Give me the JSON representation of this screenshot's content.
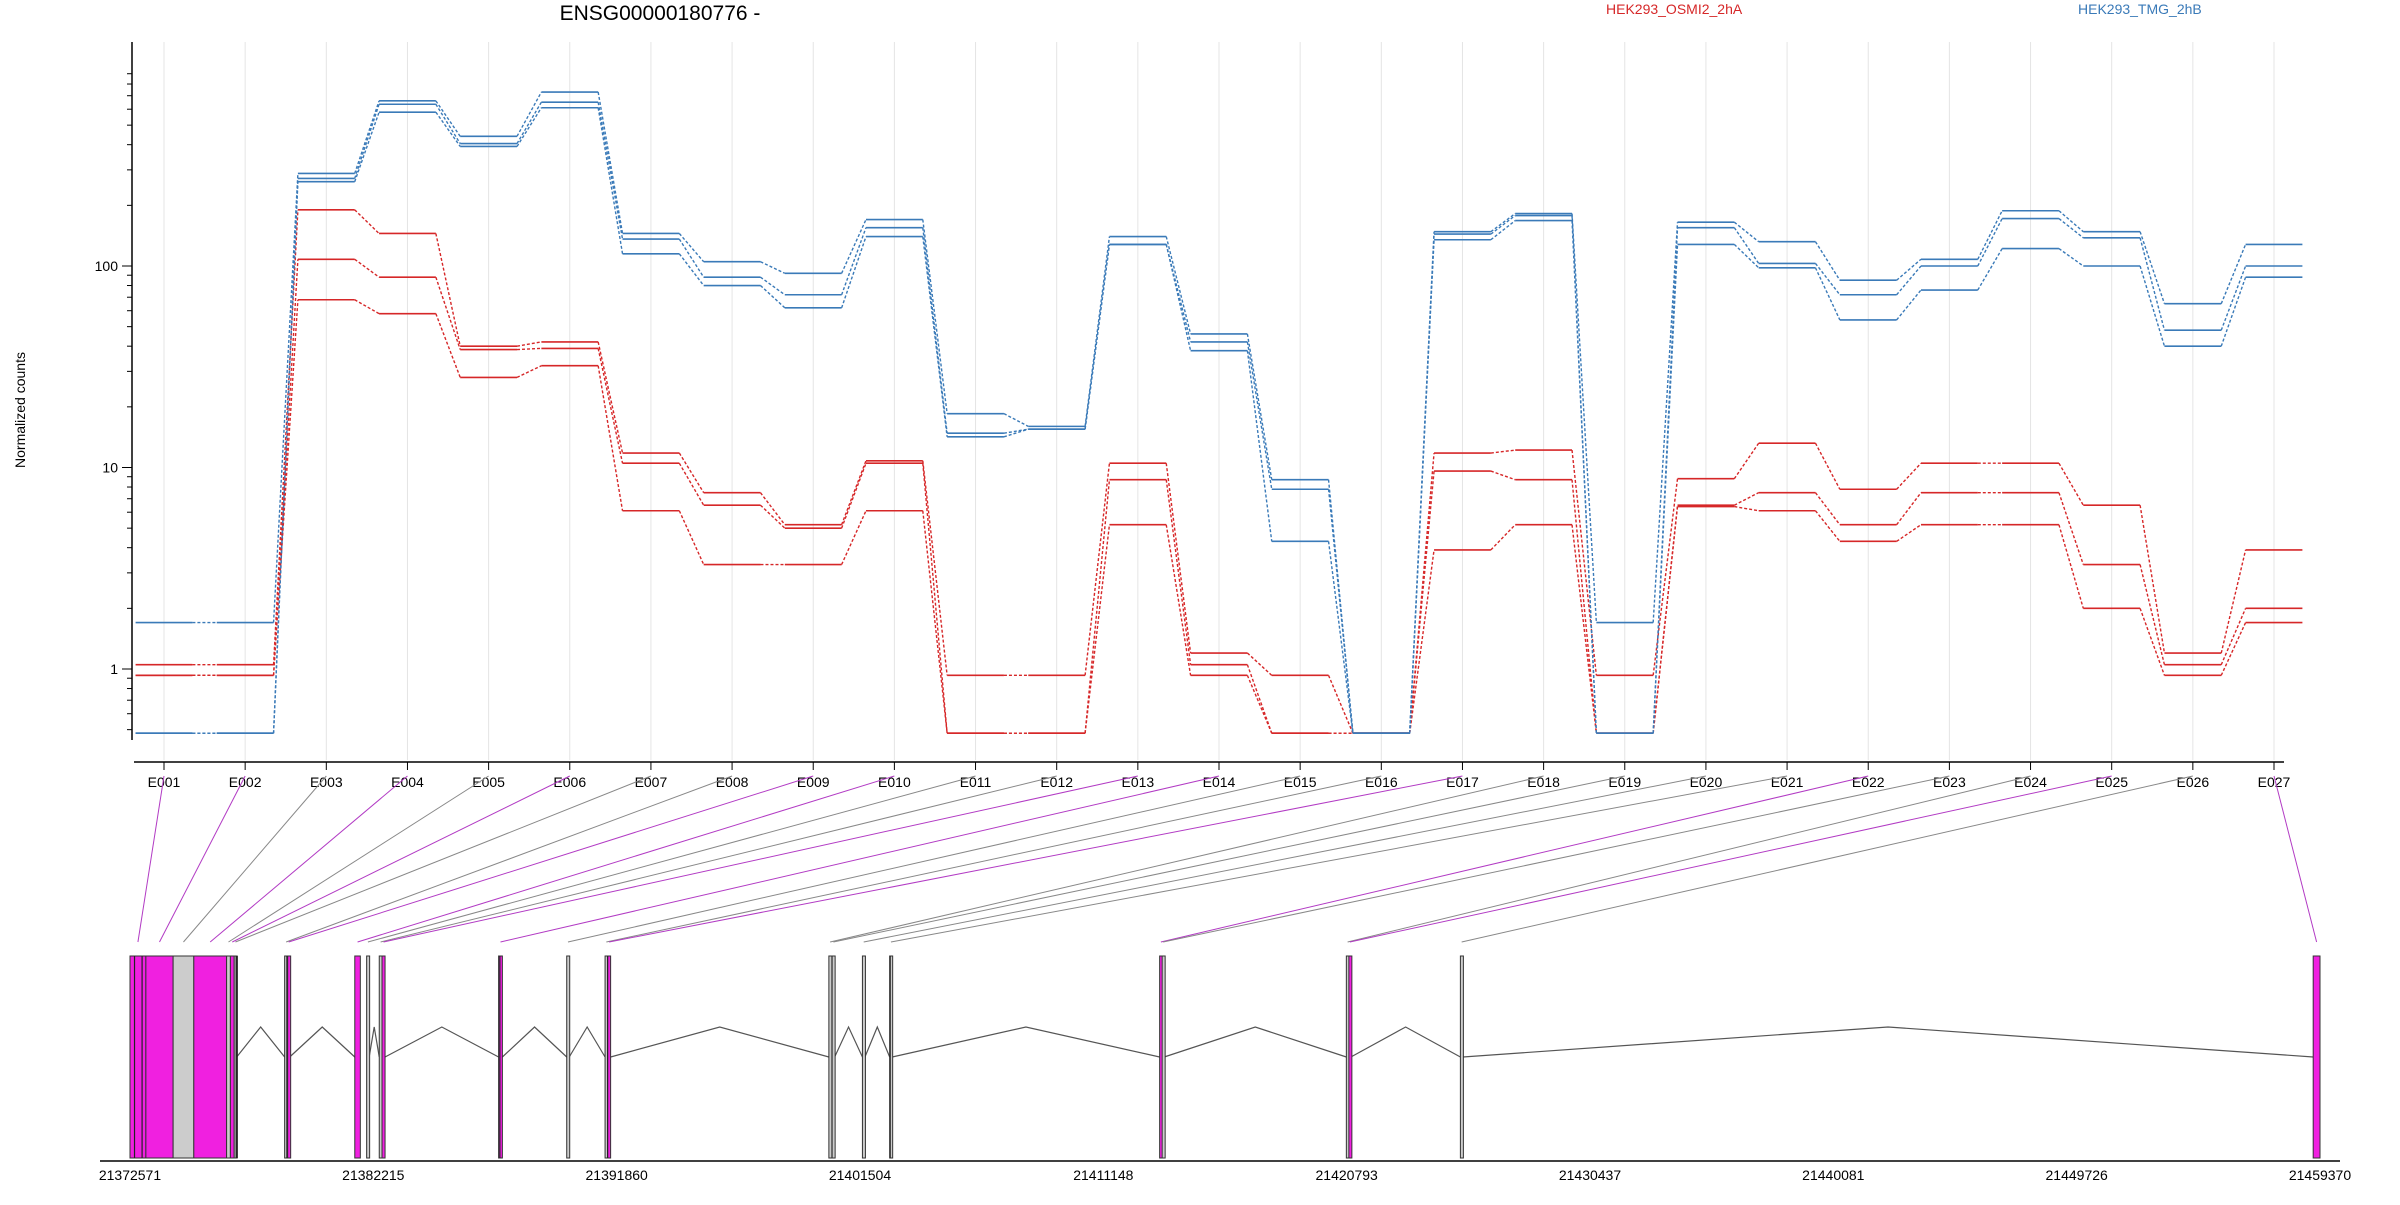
{
  "chart_data": {
    "type": "line",
    "title": "ENSG00000180776 -",
    "ylabel": "Normalized counts",
    "y_scale": "log",
    "y_ticks": [
      1,
      10,
      100
    ],
    "y_tick_labels": [
      "1",
      "10",
      "100"
    ],
    "categories": [
      "E001",
      "E002",
      "E003",
      "E004",
      "E005",
      "E006",
      "E007",
      "E008",
      "E009",
      "E010",
      "E011",
      "E012",
      "E013",
      "E014",
      "E015",
      "E016",
      "E017",
      "E018",
      "E019",
      "E020",
      "E021",
      "E022",
      "E023",
      "E024",
      "E025",
      "E026",
      "E027"
    ],
    "legend": [
      {
        "label": "HEK293_OSMI2_2hA",
        "color": "#d62728"
      },
      {
        "label": "HEK293_TMG_2hB",
        "color": "#3a7ab8"
      }
    ],
    "series": [
      {
        "group": "HEK293_OSMI2_2hA",
        "color": "#d62728",
        "values": [
          1.05,
          1.05,
          190,
          145,
          40,
          42,
          11.8,
          7.5,
          5.2,
          10.8,
          0.93,
          0.93,
          10.5,
          1.2,
          0.93,
          0.48,
          11.8,
          12.2,
          0.93,
          8.8,
          13.2,
          7.8,
          10.5,
          10.5,
          6.5,
          1.2,
          3.9
        ]
      },
      {
        "group": "HEK293_OSMI2_2hA",
        "color": "#d62728",
        "values": [
          0.93,
          0.93,
          108,
          88,
          38.5,
          39,
          10.5,
          6.5,
          5.0,
          10.5,
          0.48,
          0.48,
          8.7,
          1.05,
          0.48,
          0.48,
          9.6,
          8.7,
          0.48,
          6.5,
          7.5,
          5.2,
          7.5,
          7.5,
          3.3,
          1.05,
          2.0
        ]
      },
      {
        "group": "HEK293_OSMI2_2hA",
        "color": "#d62728",
        "values": [
          0.93,
          0.93,
          68,
          58,
          28,
          32,
          6.1,
          3.3,
          3.3,
          6.1,
          0.48,
          0.48,
          5.2,
          0.93,
          0.48,
          0.48,
          3.9,
          5.2,
          0.48,
          6.4,
          6.1,
          4.3,
          5.2,
          5.2,
          2.0,
          0.93,
          1.7
        ]
      },
      {
        "group": "HEK293_TMG_2hB",
        "color": "#3a7ab8",
        "values": [
          1.7,
          1.7,
          288,
          660,
          440,
          730,
          145,
          105,
          92,
          170,
          18.5,
          16,
          140,
          46,
          8.7,
          0.48,
          148,
          182,
          1.7,
          165,
          132,
          85,
          108,
          188,
          148,
          65,
          128
        ]
      },
      {
        "group": "HEK293_TMG_2hB",
        "color": "#3a7ab8",
        "values": [
          0.48,
          0.48,
          272,
          635,
          405,
          650,
          136,
          88,
          72,
          155,
          14.8,
          15.5,
          128,
          42,
          7.8,
          0.48,
          144,
          178,
          0.48,
          155,
          103,
          72,
          100,
          172,
          138,
          48,
          100
        ]
      },
      {
        "group": "HEK293_TMG_2hB",
        "color": "#3a7ab8",
        "values": [
          0.48,
          0.48,
          262,
          580,
          392,
          610,
          115,
          80,
          62,
          140,
          14.2,
          15.5,
          128,
          38,
          4.3,
          0.48,
          135,
          168,
          0.48,
          128,
          98,
          54,
          76,
          122,
          100,
          40,
          88
        ]
      }
    ],
    "gene_model": {
      "x_tick_labels": [
        "21372571",
        "21382215",
        "21391860",
        "21401504",
        "21411148",
        "21420793",
        "21430437",
        "21440081",
        "21449726",
        "21459370"
      ],
      "x_range": [
        21372571,
        21459370
      ],
      "highlight_color": "#f020e0",
      "connector_color_highlighted": "#b23bc4",
      "connector_color_plain": "#888888",
      "exons": [
        {
          "id": "E001",
          "start": 21372571,
          "end": 21373200,
          "highlighted": true
        },
        {
          "id": "E002",
          "start": 21373200,
          "end": 21374280,
          "highlighted": true
        },
        {
          "id": "E003",
          "start": 21374280,
          "end": 21375100,
          "highlighted": false
        },
        {
          "id": "E004",
          "start": 21375100,
          "end": 21376400,
          "highlighted": true
        },
        {
          "id": "E005",
          "start": 21376400,
          "end": 21376550,
          "highlighted": false
        },
        {
          "id": "E006",
          "start": 21376550,
          "end": 21376700,
          "highlighted": true
        },
        {
          "id": "E007",
          "start": 21376700,
          "end": 21376800,
          "highlighted": false
        },
        {
          "id": "E008",
          "start": 21378700,
          "end": 21378820,
          "highlighted": false
        },
        {
          "id": "E009",
          "start": 21378820,
          "end": 21378900,
          "highlighted": true
        },
        {
          "id": "E010",
          "start": 21381480,
          "end": 21381700,
          "highlighted": true
        },
        {
          "id": "E011",
          "start": 21381950,
          "end": 21382050,
          "highlighted": false
        },
        {
          "id": "E012",
          "start": 21382450,
          "end": 21382560,
          "highlighted": false
        },
        {
          "id": "E013",
          "start": 21382560,
          "end": 21382680,
          "highlighted": true
        },
        {
          "id": "E014",
          "start": 21387180,
          "end": 21387330,
          "highlighted": true
        },
        {
          "id": "E015",
          "start": 21389880,
          "end": 21389980,
          "highlighted": false
        },
        {
          "id": "E016",
          "start": 21391400,
          "end": 21391500,
          "highlighted": false
        },
        {
          "id": "E017",
          "start": 21391500,
          "end": 21391620,
          "highlighted": true
        },
        {
          "id": "E018",
          "start": 21400270,
          "end": 21400370,
          "highlighted": false
        },
        {
          "id": "E019",
          "start": 21400400,
          "end": 21400500,
          "highlighted": false
        },
        {
          "id": "E020",
          "start": 21401600,
          "end": 21401700,
          "highlighted": false
        },
        {
          "id": "E021",
          "start": 21402680,
          "end": 21402780,
          "highlighted": false
        },
        {
          "id": "E022",
          "start": 21413380,
          "end": 21413480,
          "highlighted": true
        },
        {
          "id": "E023",
          "start": 21413480,
          "end": 21413560,
          "highlighted": false
        },
        {
          "id": "E024",
          "start": 21420780,
          "end": 21420880,
          "highlighted": false
        },
        {
          "id": "E025",
          "start": 21420880,
          "end": 21420960,
          "highlighted": true
        },
        {
          "id": "E026",
          "start": 21425300,
          "end": 21425400,
          "highlighted": false
        },
        {
          "id": "E027",
          "start": 21459100,
          "end": 21459370,
          "highlighted": true
        }
      ],
      "lone_lines": [
        21372750,
        21373050,
        21376780,
        21376820,
        21378790,
        21387230,
        21391500,
        21402700
      ]
    }
  }
}
